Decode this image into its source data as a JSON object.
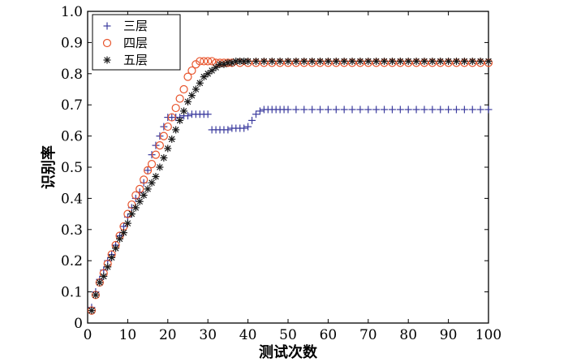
{
  "chart_data": {
    "type": "scatter",
    "title": "",
    "xlabel": "测试次数",
    "ylabel": "识别率",
    "xlim": [
      0,
      100
    ],
    "ylim": [
      0,
      1.0
    ],
    "x_ticks": [
      "0",
      "10",
      "20",
      "30",
      "40",
      "50",
      "60",
      "70",
      "80",
      "90",
      "100"
    ],
    "y_ticks": [
      "0",
      "0.1",
      "0.2",
      "0.3",
      "0.4",
      "0.5",
      "0.6",
      "0.7",
      "0.8",
      "0.9",
      "1.0"
    ],
    "grid": false,
    "legend_position": "top-left",
    "series": [
      {
        "name": "三层",
        "marker": "plus",
        "color": "#3b3b9e",
        "points": [
          [
            1,
            0.05
          ],
          [
            2,
            0.1
          ],
          [
            3,
            0.14
          ],
          [
            4,
            0.17
          ],
          [
            5,
            0.2
          ],
          [
            6,
            0.22
          ],
          [
            7,
            0.25
          ],
          [
            8,
            0.28
          ],
          [
            9,
            0.31
          ],
          [
            10,
            0.34
          ],
          [
            11,
            0.37
          ],
          [
            12,
            0.4
          ],
          [
            13,
            0.42
          ],
          [
            14,
            0.45
          ],
          [
            15,
            0.49
          ],
          [
            16,
            0.54
          ],
          [
            17,
            0.57
          ],
          [
            18,
            0.6
          ],
          [
            19,
            0.63
          ],
          [
            20,
            0.66
          ],
          [
            21,
            0.66
          ],
          [
            22,
            0.66
          ],
          [
            23,
            0.66
          ],
          [
            24,
            0.665
          ],
          [
            25,
            0.665
          ],
          [
            26,
            0.67
          ],
          [
            27,
            0.67
          ],
          [
            28,
            0.67
          ],
          [
            29,
            0.67
          ],
          [
            30,
            0.67
          ],
          [
            31,
            0.62
          ],
          [
            32,
            0.62
          ],
          [
            33,
            0.62
          ],
          [
            34,
            0.62
          ],
          [
            35,
            0.62
          ],
          [
            36,
            0.625
          ],
          [
            37,
            0.625
          ],
          [
            38,
            0.625
          ],
          [
            39,
            0.625
          ],
          [
            40,
            0.63
          ],
          [
            41,
            0.65
          ],
          [
            42,
            0.67
          ],
          [
            43,
            0.68
          ],
          [
            44,
            0.685
          ],
          [
            45,
            0.685
          ],
          [
            46,
            0.685
          ],
          [
            47,
            0.685
          ],
          [
            48,
            0.685
          ],
          [
            49,
            0.685
          ],
          [
            50,
            0.685
          ],
          [
            52,
            0.685
          ],
          [
            54,
            0.685
          ],
          [
            56,
            0.685
          ],
          [
            58,
            0.685
          ],
          [
            60,
            0.685
          ],
          [
            62,
            0.685
          ],
          [
            64,
            0.685
          ],
          [
            66,
            0.685
          ],
          [
            68,
            0.685
          ],
          [
            70,
            0.685
          ],
          [
            72,
            0.685
          ],
          [
            74,
            0.685
          ],
          [
            76,
            0.685
          ],
          [
            78,
            0.685
          ],
          [
            80,
            0.685
          ],
          [
            82,
            0.685
          ],
          [
            84,
            0.685
          ],
          [
            86,
            0.685
          ],
          [
            88,
            0.685
          ],
          [
            90,
            0.685
          ],
          [
            92,
            0.685
          ],
          [
            94,
            0.685
          ],
          [
            96,
            0.685
          ],
          [
            98,
            0.685
          ],
          [
            100,
            0.685
          ]
        ]
      },
      {
        "name": "四层",
        "marker": "circle",
        "color": "#e8552d",
        "points": [
          [
            1,
            0.04
          ],
          [
            2,
            0.09
          ],
          [
            3,
            0.13
          ],
          [
            4,
            0.16
          ],
          [
            5,
            0.19
          ],
          [
            6,
            0.22
          ],
          [
            7,
            0.25
          ],
          [
            8,
            0.28
          ],
          [
            9,
            0.31
          ],
          [
            10,
            0.35
          ],
          [
            11,
            0.38
          ],
          [
            12,
            0.41
          ],
          [
            13,
            0.43
          ],
          [
            14,
            0.46
          ],
          [
            15,
            0.49
          ],
          [
            16,
            0.51
          ],
          [
            17,
            0.54
          ],
          [
            18,
            0.57
          ],
          [
            19,
            0.6
          ],
          [
            20,
            0.63
          ],
          [
            21,
            0.66
          ],
          [
            22,
            0.69
          ],
          [
            23,
            0.72
          ],
          [
            24,
            0.75
          ],
          [
            25,
            0.79
          ],
          [
            26,
            0.81
          ],
          [
            27,
            0.83
          ],
          [
            28,
            0.84
          ],
          [
            29,
            0.84
          ],
          [
            30,
            0.84
          ],
          [
            31,
            0.84
          ],
          [
            32,
            0.835
          ],
          [
            33,
            0.835
          ],
          [
            34,
            0.835
          ],
          [
            35,
            0.835
          ],
          [
            36,
            0.835
          ],
          [
            38,
            0.835
          ],
          [
            40,
            0.835
          ],
          [
            42,
            0.835
          ],
          [
            44,
            0.835
          ],
          [
            46,
            0.835
          ],
          [
            48,
            0.835
          ],
          [
            50,
            0.835
          ],
          [
            52,
            0.835
          ],
          [
            54,
            0.835
          ],
          [
            56,
            0.835
          ],
          [
            58,
            0.835
          ],
          [
            60,
            0.835
          ],
          [
            62,
            0.835
          ],
          [
            64,
            0.835
          ],
          [
            66,
            0.835
          ],
          [
            68,
            0.835
          ],
          [
            70,
            0.835
          ],
          [
            72,
            0.835
          ],
          [
            74,
            0.835
          ],
          [
            76,
            0.835
          ],
          [
            78,
            0.835
          ],
          [
            80,
            0.835
          ],
          [
            82,
            0.835
          ],
          [
            84,
            0.835
          ],
          [
            86,
            0.835
          ],
          [
            88,
            0.835
          ],
          [
            90,
            0.835
          ],
          [
            92,
            0.835
          ],
          [
            94,
            0.835
          ],
          [
            96,
            0.835
          ],
          [
            98,
            0.835
          ],
          [
            100,
            0.835
          ]
        ]
      },
      {
        "name": "五层",
        "marker": "star",
        "color": "#1a1a1a",
        "points": [
          [
            1,
            0.04
          ],
          [
            2,
            0.09
          ],
          [
            3,
            0.13
          ],
          [
            4,
            0.15
          ],
          [
            5,
            0.18
          ],
          [
            6,
            0.21
          ],
          [
            7,
            0.24
          ],
          [
            8,
            0.27
          ],
          [
            9,
            0.29
          ],
          [
            10,
            0.32
          ],
          [
            11,
            0.35
          ],
          [
            12,
            0.37
          ],
          [
            13,
            0.39
          ],
          [
            14,
            0.41
          ],
          [
            15,
            0.43
          ],
          [
            16,
            0.45
          ],
          [
            17,
            0.47
          ],
          [
            18,
            0.5
          ],
          [
            19,
            0.53
          ],
          [
            20,
            0.56
          ],
          [
            21,
            0.59
          ],
          [
            22,
            0.62
          ],
          [
            23,
            0.65
          ],
          [
            24,
            0.68
          ],
          [
            25,
            0.71
          ],
          [
            26,
            0.73
          ],
          [
            27,
            0.75
          ],
          [
            28,
            0.77
          ],
          [
            29,
            0.79
          ],
          [
            30,
            0.8
          ],
          [
            31,
            0.81
          ],
          [
            32,
            0.82
          ],
          [
            33,
            0.83
          ],
          [
            34,
            0.83
          ],
          [
            35,
            0.835
          ],
          [
            36,
            0.835
          ],
          [
            37,
            0.84
          ],
          [
            38,
            0.84
          ],
          [
            39,
            0.84
          ],
          [
            40,
            0.84
          ],
          [
            42,
            0.84
          ],
          [
            44,
            0.84
          ],
          [
            46,
            0.84
          ],
          [
            48,
            0.84
          ],
          [
            50,
            0.84
          ],
          [
            52,
            0.84
          ],
          [
            54,
            0.84
          ],
          [
            56,
            0.84
          ],
          [
            58,
            0.84
          ],
          [
            60,
            0.84
          ],
          [
            62,
            0.84
          ],
          [
            64,
            0.84
          ],
          [
            66,
            0.84
          ],
          [
            68,
            0.84
          ],
          [
            70,
            0.84
          ],
          [
            72,
            0.84
          ],
          [
            74,
            0.84
          ],
          [
            76,
            0.84
          ],
          [
            78,
            0.84
          ],
          [
            80,
            0.84
          ],
          [
            82,
            0.84
          ],
          [
            84,
            0.84
          ],
          [
            86,
            0.84
          ],
          [
            88,
            0.84
          ],
          [
            90,
            0.84
          ],
          [
            92,
            0.84
          ],
          [
            94,
            0.84
          ],
          [
            96,
            0.84
          ],
          [
            98,
            0.84
          ],
          [
            100,
            0.84
          ]
        ]
      }
    ]
  }
}
